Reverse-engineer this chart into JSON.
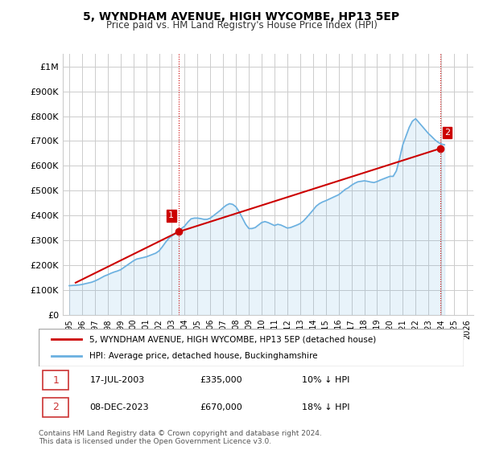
{
  "title": "5, WYNDHAM AVENUE, HIGH WYCOMBE, HP13 5EP",
  "subtitle": "Price paid vs. HM Land Registry's House Price Index (HPI)",
  "ylabel_ticks": [
    "£0",
    "£100K",
    "£200K",
    "£300K",
    "£400K",
    "£500K",
    "£600K",
    "£700K",
    "£800K",
    "£900K",
    "£1M"
  ],
  "ytick_values": [
    0,
    100000,
    200000,
    300000,
    400000,
    500000,
    600000,
    700000,
    800000,
    900000,
    1000000
  ],
  "ylim": [
    0,
    1050000
  ],
  "xlim_start": 1994.5,
  "xlim_end": 2026.5,
  "xtick_years": [
    1995,
    1996,
    1997,
    1998,
    1999,
    2000,
    2001,
    2002,
    2003,
    2004,
    2005,
    2006,
    2007,
    2008,
    2009,
    2010,
    2011,
    2012,
    2013,
    2014,
    2015,
    2016,
    2017,
    2018,
    2019,
    2020,
    2021,
    2022,
    2023,
    2024,
    2025,
    2026
  ],
  "hpi_color": "#6ab0e0",
  "price_color": "#cc0000",
  "marker_color_1": "#cc0000",
  "marker_color_2": "#cc0000",
  "vline_color": "#cc0000",
  "vline_style": ":",
  "grid_color": "#cccccc",
  "bg_color": "#ffffff",
  "sale1_x": 2003.54,
  "sale1_y": 335000,
  "sale1_label": "1",
  "sale2_x": 2023.93,
  "sale2_y": 670000,
  "sale2_label": "2",
  "legend_label_red": "5, WYNDHAM AVENUE, HIGH WYCOMBE, HP13 5EP (detached house)",
  "legend_label_blue": "HPI: Average price, detached house, Buckinghamshire",
  "annot1_box_label": "1",
  "annot1_date": "17-JUL-2003",
  "annot1_price": "£335,000",
  "annot1_hpi": "10% ↓ HPI",
  "annot2_box_label": "2",
  "annot2_date": "08-DEC-2023",
  "annot2_price": "£670,000",
  "annot2_hpi": "18% ↓ HPI",
  "footer": "Contains HM Land Registry data © Crown copyright and database right 2024.\nThis data is licensed under the Open Government Licence v3.0.",
  "hpi_data_x": [
    1995.0,
    1995.25,
    1995.5,
    1995.75,
    1996.0,
    1996.25,
    1996.5,
    1996.75,
    1997.0,
    1997.25,
    1997.5,
    1997.75,
    1998.0,
    1998.25,
    1998.5,
    1998.75,
    1999.0,
    1999.25,
    1999.5,
    1999.75,
    2000.0,
    2000.25,
    2000.5,
    2000.75,
    2001.0,
    2001.25,
    2001.5,
    2001.75,
    2002.0,
    2002.25,
    2002.5,
    2002.75,
    2003.0,
    2003.25,
    2003.5,
    2003.75,
    2004.0,
    2004.25,
    2004.5,
    2004.75,
    2005.0,
    2005.25,
    2005.5,
    2005.75,
    2006.0,
    2006.25,
    2006.5,
    2006.75,
    2007.0,
    2007.25,
    2007.5,
    2007.75,
    2008.0,
    2008.25,
    2008.5,
    2008.75,
    2009.0,
    2009.25,
    2009.5,
    2009.75,
    2010.0,
    2010.25,
    2010.5,
    2010.75,
    2011.0,
    2011.25,
    2011.5,
    2011.75,
    2012.0,
    2012.25,
    2012.5,
    2012.75,
    2013.0,
    2013.25,
    2013.5,
    2013.75,
    2014.0,
    2014.25,
    2014.5,
    2014.75,
    2015.0,
    2015.25,
    2015.5,
    2015.75,
    2016.0,
    2016.25,
    2016.5,
    2016.75,
    2017.0,
    2017.25,
    2017.5,
    2017.75,
    2018.0,
    2018.25,
    2018.5,
    2018.75,
    2019.0,
    2019.25,
    2019.5,
    2019.75,
    2020.0,
    2020.25,
    2020.5,
    2020.75,
    2021.0,
    2021.25,
    2021.5,
    2021.75,
    2022.0,
    2022.25,
    2022.5,
    2022.75,
    2023.0,
    2023.25,
    2023.5,
    2023.75,
    2024.0,
    2024.25
  ],
  "hpi_data_y": [
    118000,
    119000,
    120000,
    121000,
    123000,
    126000,
    129000,
    132000,
    137000,
    143000,
    150000,
    157000,
    162000,
    168000,
    173000,
    177000,
    182000,
    191000,
    200000,
    209000,
    218000,
    225000,
    228000,
    231000,
    234000,
    239000,
    244000,
    249000,
    258000,
    274000,
    292000,
    308000,
    318000,
    328000,
    340000,
    348000,
    358000,
    374000,
    387000,
    390000,
    390000,
    388000,
    385000,
    385000,
    390000,
    400000,
    410000,
    420000,
    432000,
    442000,
    448000,
    445000,
    435000,
    415000,
    390000,
    365000,
    348000,
    348000,
    352000,
    362000,
    372000,
    376000,
    372000,
    366000,
    360000,
    365000,
    362000,
    356000,
    350000,
    352000,
    357000,
    362000,
    368000,
    378000,
    392000,
    407000,
    422000,
    438000,
    448000,
    455000,
    460000,
    466000,
    472000,
    478000,
    484000,
    494000,
    505000,
    512000,
    522000,
    530000,
    536000,
    538000,
    540000,
    538000,
    535000,
    533000,
    537000,
    543000,
    548000,
    553000,
    558000,
    558000,
    580000,
    630000,
    685000,
    720000,
    755000,
    780000,
    790000,
    775000,
    760000,
    745000,
    730000,
    718000,
    705000,
    695000,
    688000,
    685000
  ],
  "price_data_x": [
    1995.5,
    2003.54,
    2023.93
  ],
  "price_data_y": [
    130000,
    335000,
    670000
  ]
}
